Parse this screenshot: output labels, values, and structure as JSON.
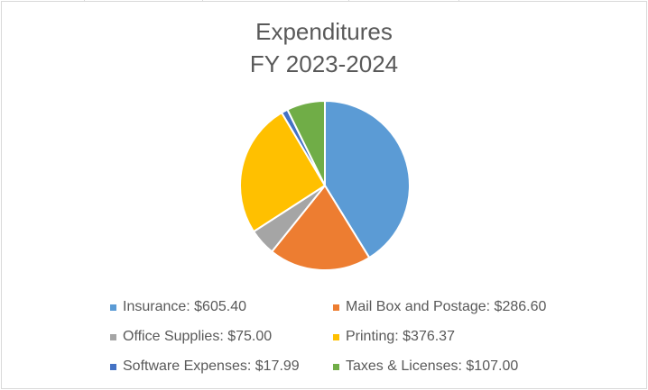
{
  "chart_data": {
    "type": "pie",
    "title": "Expenditures",
    "subtitle": "FY 2023-2024",
    "categories": [
      "Insurance",
      "Mail Box and Postage",
      "Office Supplies",
      "Printing",
      "Software Expenses",
      "Taxes & Licenses"
    ],
    "values": [
      605.4,
      286.6,
      75.0,
      376.37,
      17.99,
      107.0
    ],
    "colors": [
      "#5B9BD5",
      "#ED7D31",
      "#A5A5A5",
      "#FFC000",
      "#4472C4",
      "#70AD47"
    ],
    "legend_position": "bottom",
    "legend_labels": [
      "Insurance: $605.40",
      "Mail Box and Postage: $286.60",
      "Office Supplies: $75.00",
      "Printing: $376.37",
      "Software Expenses: $17.99",
      "Taxes & Licenses: $107.00"
    ]
  }
}
